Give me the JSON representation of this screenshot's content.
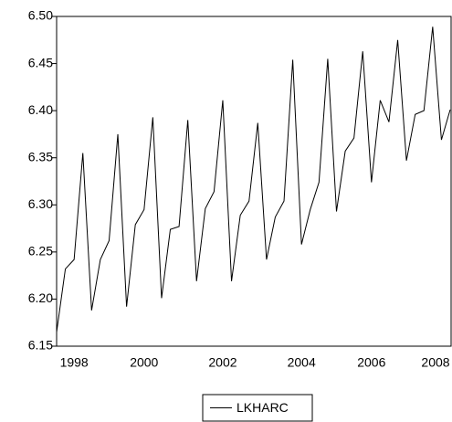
{
  "chart_data": {
    "type": "line",
    "categories": [
      null,
      null,
      "1998",
      null,
      null,
      null,
      null,
      null,
      null,
      null,
      "2000",
      null,
      null,
      null,
      null,
      null,
      null,
      null,
      null,
      "2002",
      null,
      null,
      null,
      null,
      null,
      null,
      null,
      null,
      "2004",
      null,
      null,
      null,
      null,
      null,
      null,
      null,
      "2006",
      null,
      null,
      null,
      null,
      null,
      null,
      null,
      null,
      "2008"
    ],
    "series": [
      {
        "name": "LKHARC",
        "color": "#000000",
        "values": [
          6.165,
          6.232,
          6.242,
          6.355,
          6.188,
          6.242,
          6.262,
          6.375,
          6.192,
          6.279,
          6.295,
          6.393,
          6.201,
          6.274,
          6.277,
          6.39,
          6.219,
          6.296,
          6.314,
          6.411,
          6.219,
          6.289,
          6.304,
          6.387,
          6.242,
          6.287,
          6.304,
          6.454,
          6.258,
          6.295,
          6.324,
          6.455,
          6.293,
          6.357,
          6.371,
          6.463,
          6.324,
          6.411,
          6.388,
          6.475,
          6.347,
          6.396,
          6.4,
          6.489,
          6.369,
          6.401
        ]
      }
    ],
    "ylim": [
      6.15,
      6.5
    ],
    "yticks": [
      6.15,
      {
        "value": 6.2,
        "label": "6.20"
      },
      6.25,
      {
        "value": 6.3,
        "label": "6.30"
      },
      6.35,
      {
        "value": 6.4,
        "label": "6.40"
      },
      6.45,
      {
        "value": 6.5,
        "label": "6.50"
      }
    ],
    "grid": false,
    "legend": "bottom"
  }
}
